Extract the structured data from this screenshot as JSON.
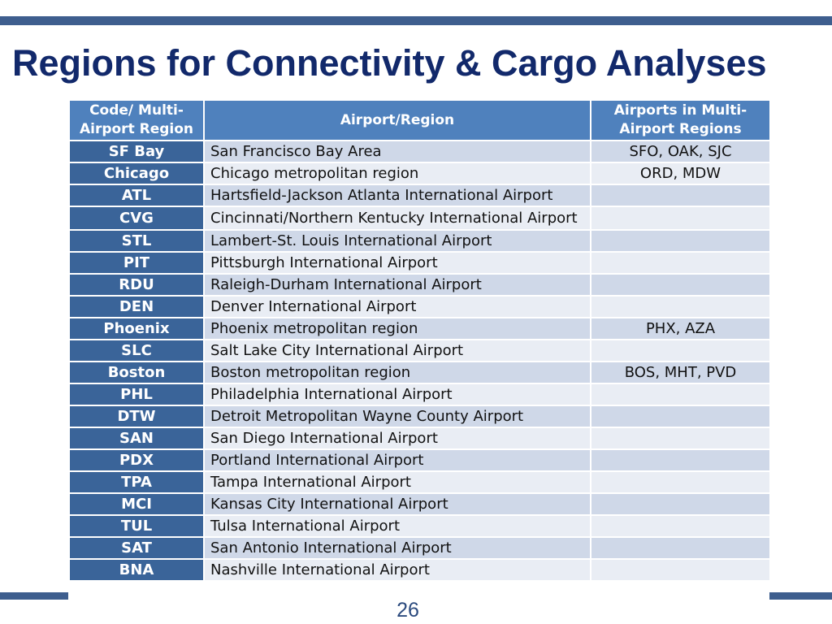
{
  "slide": {
    "title": "Regions for Connectivity & Cargo Analyses",
    "page_number": "26"
  },
  "table": {
    "headers": {
      "code": "Code/ Multi-Airport Region",
      "airport": "Airport/Region",
      "multi": "Airports in Multi-Airport Regions"
    },
    "rows": [
      {
        "code": "SF Bay",
        "name": "San Francisco Bay Area",
        "multi": "SFO, OAK, SJC"
      },
      {
        "code": "Chicago",
        "name": "Chicago metropolitan region",
        "multi": "ORD, MDW"
      },
      {
        "code": "ATL",
        "name": "Hartsfield-Jackson Atlanta International Airport",
        "multi": ""
      },
      {
        "code": "CVG",
        "name": "Cincinnati/Northern Kentucky International Airport",
        "multi": ""
      },
      {
        "code": "STL",
        "name": "Lambert-St. Louis International Airport",
        "multi": ""
      },
      {
        "code": "PIT",
        "name": "Pittsburgh International Airport",
        "multi": ""
      },
      {
        "code": "RDU",
        "name": "Raleigh-Durham International Airport",
        "multi": ""
      },
      {
        "code": "DEN",
        "name": "Denver International Airport",
        "multi": ""
      },
      {
        "code": "Phoenix",
        "name": "Phoenix metropolitan region",
        "multi": "PHX, AZA"
      },
      {
        "code": "SLC",
        "name": "Salt Lake City International Airport",
        "multi": ""
      },
      {
        "code": "Boston",
        "name": "Boston metropolitan region",
        "multi": "BOS, MHT, PVD"
      },
      {
        "code": "PHL",
        "name": "Philadelphia International Airport",
        "multi": ""
      },
      {
        "code": "DTW",
        "name": "Detroit Metropolitan Wayne County Airport",
        "multi": ""
      },
      {
        "code": "SAN",
        "name": "San Diego International Airport",
        "multi": ""
      },
      {
        "code": "PDX",
        "name": "Portland International Airport",
        "multi": ""
      },
      {
        "code": "TPA",
        "name": "Tampa International Airport",
        "multi": ""
      },
      {
        "code": "MCI",
        "name": "Kansas City International Airport",
        "multi": ""
      },
      {
        "code": "TUL",
        "name": "Tulsa International Airport",
        "multi": ""
      },
      {
        "code": "SAT",
        "name": "San Antonio International Airport",
        "multi": ""
      },
      {
        "code": "BNA",
        "name": "Nashville International Airport",
        "multi": ""
      }
    ]
  }
}
